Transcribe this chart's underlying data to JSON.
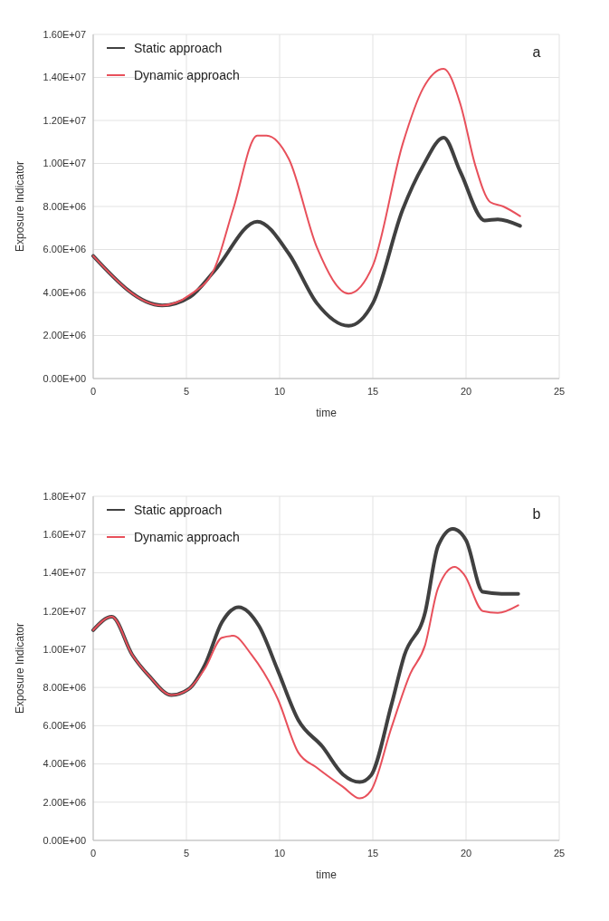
{
  "chart_data": [
    {
      "type": "line",
      "xlabel": "time",
      "ylabel": "Exposure Indicator",
      "annotations": [
        "a"
      ],
      "legend": "top left",
      "grid": true,
      "line_style": "solid",
      "marker": "none",
      "xlim": [
        0,
        25
      ],
      "xticks": [
        0,
        5,
        10,
        15,
        20,
        25
      ],
      "ylim": [
        0,
        16000000
      ],
      "yticks": [
        {
          "value": 0,
          "label": "0.00E+00"
        },
        {
          "value": 2000000,
          "label": "2.00E+06"
        },
        {
          "value": 4000000,
          "label": "4.00E+06"
        },
        {
          "value": 6000000,
          "label": "6.00E+06"
        },
        {
          "value": 8000000,
          "label": "8.00E+06"
        },
        {
          "value": 10000000,
          "label": "1.00E+07"
        },
        {
          "value": 12000000,
          "label": "1.20E+07"
        },
        {
          "value": 14000000,
          "label": "1.40E+07"
        },
        {
          "value": 16000000,
          "label": "1.60E+07"
        }
      ],
      "series": [
        {
          "name": "Static approach",
          "color": "#404040",
          "x": [
            0,
            3.7,
            5.2,
            6.5,
            8.8,
            10.5,
            12,
            13.7,
            15,
            16.6,
            17.7,
            18.8,
            19.7,
            21,
            21.7,
            22.9
          ],
          "values": [
            5700000,
            3400000,
            3800000,
            5000000,
            7300000,
            5800000,
            3500000,
            2450000,
            3500000,
            7850000,
            9900000,
            11200000,
            9600000,
            7350000,
            7400000,
            7100000
          ]
        },
        {
          "name": "Dynamic approach",
          "color": "#e8505b",
          "x": [
            0,
            3.7,
            5.2,
            6.5,
            7.5,
            8.8,
            9.3,
            10.5,
            12,
            13.7,
            15,
            16.6,
            17.7,
            18.8,
            19.7,
            20.5,
            21.3,
            22,
            22.9
          ],
          "values": [
            5700000,
            3400000,
            3900000,
            5100000,
            7850000,
            11300000,
            11300000,
            10200000,
            6100000,
            3950000,
            5250000,
            10900000,
            13500000,
            14400000,
            12750000,
            9900000,
            8200000,
            8000000,
            7550000
          ]
        }
      ]
    },
    {
      "type": "line",
      "xlabel": "time",
      "ylabel": "Exposure Indicator",
      "annotations": [
        "b"
      ],
      "legend": "top left",
      "grid": true,
      "line_style": "solid",
      "marker": "none",
      "xlim": [
        0,
        25
      ],
      "xticks": [
        0,
        5,
        10,
        15,
        20,
        25
      ],
      "ylim": [
        0,
        18000000
      ],
      "yticks": [
        {
          "value": 0,
          "label": "0.00E+00"
        },
        {
          "value": 2000000,
          "label": "2.00E+06"
        },
        {
          "value": 4000000,
          "label": "4.00E+06"
        },
        {
          "value": 6000000,
          "label": "6.00E+06"
        },
        {
          "value": 8000000,
          "label": "8.00E+06"
        },
        {
          "value": 10000000,
          "label": "1.00E+07"
        },
        {
          "value": 12000000,
          "label": "1.20E+07"
        },
        {
          "value": 14000000,
          "label": "1.40E+07"
        },
        {
          "value": 16000000,
          "label": "1.60E+07"
        },
        {
          "value": 18000000,
          "label": "1.80E+07"
        }
      ],
      "series": [
        {
          "name": "Static approach",
          "color": "#404040",
          "x": [
            0,
            1,
            2.1,
            3,
            4.2,
            5.1,
            6,
            6.9,
            7.8,
            8.9,
            9.9,
            11,
            12.3,
            13.4,
            14.3,
            14.9,
            16,
            16.7,
            17.8,
            18.5,
            19.3,
            20,
            20.9,
            21.9,
            22.8
          ],
          "values": [
            11000000,
            11700000,
            9700000,
            8600000,
            7600000,
            7900000,
            9200000,
            11400000,
            12200000,
            11200000,
            8900000,
            6300000,
            4900000,
            3450000,
            3050000,
            3400000,
            7100000,
            9700000,
            11900000,
            15400000,
            16300000,
            15700000,
            13000000,
            12900000,
            12900000
          ]
        },
        {
          "name": "Dynamic approach",
          "color": "#e8505b",
          "x": [
            0,
            1,
            2.1,
            3,
            4.2,
            5.1,
            6,
            6.9,
            7.5,
            8.5,
            9.9,
            11,
            12,
            13.4,
            14.3,
            14.9,
            16,
            17,
            17.8,
            18.5,
            19.4,
            19.9,
            20.9,
            21.7,
            22.8
          ],
          "values": [
            11000000,
            11700000,
            9700000,
            8600000,
            7600000,
            7900000,
            9000000,
            10600000,
            10700000,
            9700000,
            7400000,
            4600000,
            3800000,
            2800000,
            2200000,
            2600000,
            5900000,
            8700000,
            10200000,
            13200000,
            14300000,
            13900000,
            12000000,
            11900000,
            12300000
          ]
        }
      ]
    }
  ]
}
